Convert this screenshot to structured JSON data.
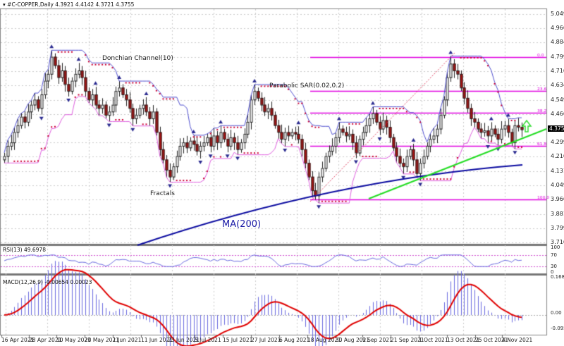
{
  "header": {
    "symbol": "#C-COPPER,Daily",
    "ohlc": "4.3921 4.4142 4.3721 4.3755",
    "menu_icon": "triangle-down-icon"
  },
  "annotations": {
    "donchian": "Donchian Channel(10)",
    "sar": "Parabolic SAR(0.02,0.2)",
    "fractals": "Fractals",
    "ma": "MA(200)"
  },
  "rsi": {
    "label": "RSI(13) 49.6978",
    "levels": [
      "100",
      "70",
      "30",
      "0"
    ]
  },
  "macd": {
    "label": "MACD(12,26,9) -0.00654 0.00023",
    "levels": [
      "0.16886",
      "0.00",
      "-0.09567"
    ]
  },
  "current_price": "4.3755",
  "colors": {
    "bull": "#ffffff",
    "bear": "#b01010",
    "donchian_upper": "#5050d0",
    "donchian_lower": "#e060e0",
    "sar": "#cc0033",
    "ma": "#0a0aa0",
    "fib": "#e000e0",
    "trend": "#22dd22",
    "macd_hist": "#6a6ae0",
    "macd_signal": "#e00000",
    "rsi": "#6a6ae0",
    "arrow": "#33dd33"
  },
  "chart_data": {
    "type": "candlestick",
    "title": "#C-COPPER,Daily 4.3921 4.4142 4.3721 4.3755",
    "y_ticks": [
      "5.0490",
      "4.9665",
      "4.8840",
      "4.7990",
      "4.7165",
      "4.6340",
      "4.5490",
      "4.4665",
      "4.2990",
      "4.2165",
      "4.1315",
      "4.0490",
      "3.9665",
      "3.8815",
      "3.7990",
      "3.7165"
    ],
    "ylim": [
      3.7165,
      5.049
    ],
    "x_ticks": [
      "16 Apr 2021",
      "28 Apr 2021",
      "10 May 2021",
      "20 May 2021",
      "1 Jun 2021",
      "11 Jun 2021",
      "23 Jun 2021",
      "5 Jul 2021",
      "15 Jul 2021",
      "27 Jul 2021",
      "6 Aug 2021",
      "18 Aug 2021",
      "30 Aug 2021",
      "9 Sep 2021",
      "21 Sep 2021",
      "1 Oct 2021",
      "13 Oct 2021",
      "25 Oct 2021",
      "4 Nov 2021"
    ],
    "fibonacci_levels": [
      {
        "label": "0.0",
        "price": 4.799
      },
      {
        "label": "23.6",
        "price": 4.6
      },
      {
        "label": "38.2",
        "price": 4.475
      },
      {
        "label": "61.8",
        "price": 4.28
      },
      {
        "label": "100.0",
        "price": 3.9665
      }
    ],
    "closes": [
      4.22,
      4.28,
      4.3,
      4.36,
      4.4,
      4.45,
      4.42,
      4.48,
      4.52,
      4.55,
      4.5,
      4.58,
      4.66,
      4.7,
      4.8,
      4.75,
      4.68,
      4.72,
      4.64,
      4.6,
      4.66,
      4.7,
      4.72,
      4.68,
      4.6,
      4.55,
      4.58,
      4.52,
      4.5,
      4.52,
      4.46,
      4.48,
      4.52,
      4.6,
      4.62,
      4.58,
      4.55,
      4.5,
      4.44,
      4.46,
      4.5,
      4.52,
      4.48,
      4.44,
      4.48,
      4.36,
      4.26,
      4.2,
      4.14,
      4.1,
      4.16,
      4.22,
      4.28,
      4.3,
      4.27,
      4.31,
      4.29,
      4.25,
      4.28,
      4.3,
      4.33,
      4.28,
      4.34,
      4.3,
      4.36,
      4.32,
      4.28,
      4.33,
      4.3,
      4.26,
      4.3,
      4.35,
      4.42,
      4.55,
      4.6,
      4.56,
      4.52,
      4.48,
      4.5,
      4.46,
      4.4,
      4.36,
      4.32,
      4.36,
      4.34,
      4.36,
      4.35,
      4.32,
      4.26,
      4.18,
      4.1,
      4.02,
      3.99,
      4.1,
      4.15,
      4.22,
      4.25,
      4.28,
      4.33,
      4.38,
      4.36,
      4.34,
      4.35,
      4.3,
      4.24,
      4.32,
      4.36,
      4.4,
      4.44,
      4.47,
      4.42,
      4.38,
      4.43,
      4.39,
      4.33,
      4.27,
      4.22,
      4.18,
      4.16,
      4.22,
      4.26,
      4.2,
      4.12,
      4.18,
      4.22,
      4.28,
      4.32,
      4.34,
      4.38,
      4.46,
      4.55,
      4.68,
      4.76,
      4.72,
      4.7,
      4.62,
      4.56,
      4.5,
      4.44,
      4.42,
      4.38,
      4.36,
      4.37,
      4.34,
      4.38,
      4.35,
      4.32,
      4.38,
      4.4,
      4.36,
      4.3,
      4.4,
      4.39,
      4.3755
    ],
    "ma200": {
      "start": [
        195,
        348
      ],
      "end": [
        741,
        234
      ]
    },
    "trendline": {
      "start": [
        523,
        282
      ],
      "end": [
        775,
        183
      ]
    }
  }
}
